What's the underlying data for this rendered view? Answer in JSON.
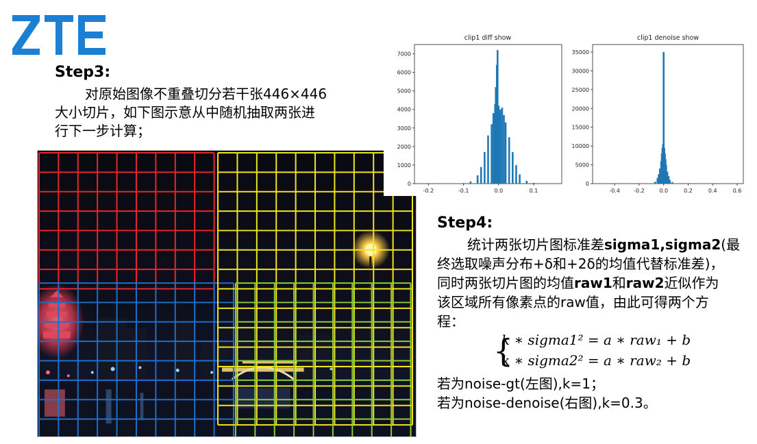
{
  "logo": {
    "text": "ZTE",
    "color": "#1b7fd3"
  },
  "step3": {
    "title": "Step3:",
    "line1": "对原始图像不重叠切分若干张446×446",
    "line2": "大小切片，如下图示意从中随机抽取两张进",
    "line3": "行下一步计算；"
  },
  "photo": {
    "grid_colors": {
      "red": "#e8262b",
      "yellow": "#f0e61a",
      "blue": "#1f6fc8",
      "green": "#8ccc3a"
    }
  },
  "charts": [
    {
      "title": "clip1 diff show",
      "x_ticks": [
        "-0.2",
        "-0.1",
        "0.0",
        "0.1"
      ],
      "y_ticks": [
        "0",
        "1000",
        "2000",
        "3000",
        "4000",
        "5000",
        "6000",
        "7000"
      ],
      "bar_color": "#1f77b4"
    },
    {
      "title": "clip1 denoise show",
      "x_ticks": [
        "-0.4",
        "-0.2",
        "0.0",
        "0.2",
        "0.4",
        "0.6"
      ],
      "y_ticks": [
        "0",
        "5000",
        "10000",
        "15000",
        "20000",
        "25000",
        "30000",
        "35000"
      ],
      "bar_color": "#1f77b4"
    }
  ],
  "chart_data": [
    {
      "type": "bar",
      "title": "clip1 diff show",
      "xlim": [
        -0.24,
        0.18
      ],
      "ylim": [
        0,
        7500
      ],
      "x": [
        -0.1,
        -0.08,
        -0.06,
        -0.05,
        -0.04,
        -0.03,
        -0.02,
        -0.015,
        -0.01,
        -0.008,
        -0.005,
        -0.003,
        0.0,
        0.003,
        0.005,
        0.01,
        0.015,
        0.02,
        0.03,
        0.04,
        0.05,
        0.06,
        0.08,
        0.1
      ],
      "values": [
        30,
        120,
        450,
        900,
        1700,
        2600,
        3200,
        3800,
        4300,
        5200,
        6400,
        7200,
        4200,
        3900,
        4000,
        4100,
        3700,
        3300,
        2500,
        1700,
        1000,
        500,
        150,
        40
      ]
    },
    {
      "type": "bar",
      "title": "clip1 denoise show",
      "xlim": [
        -0.58,
        0.65
      ],
      "ylim": [
        0,
        37000
      ],
      "x": [
        -0.1,
        -0.07,
        -0.05,
        -0.04,
        -0.03,
        -0.02,
        -0.015,
        -0.01,
        -0.005,
        0.0,
        0.005,
        0.01,
        0.015,
        0.02,
        0.03,
        0.04,
        0.05,
        0.07,
        0.1
      ],
      "values": [
        100,
        500,
        1500,
        2500,
        4000,
        6000,
        8000,
        9500,
        10500,
        35000,
        9500,
        8000,
        6500,
        5000,
        3200,
        2000,
        1000,
        400,
        100
      ]
    }
  ],
  "step4": {
    "title": "Step4:",
    "l1_a": "统计两张切片图标准差",
    "l1_b": "sigma1,sigma2",
    "l1_c": "(最",
    "l2": "终选取噪声分布+δ和+2δ的均值代替标准差)，",
    "l3_a": "同时两张切片图的均值",
    "l3_b": "raw1",
    "l3_c": "和",
    "l3_d": "raw2",
    "l3_e": "近似作为",
    "l4": "该区域所有像素点的raw值，由此可得两个方",
    "l5": "程："
  },
  "formula": {
    "eq1": "k ∗ sigma1² = a ∗ raw₁ + b",
    "eq2": "k ∗ sigma2² = a ∗ raw₂ + b"
  },
  "notes": {
    "note1": "若为noise-gt(左图),k=1；",
    "note2": "若为noise-denoise(右图),k=0.3。"
  }
}
